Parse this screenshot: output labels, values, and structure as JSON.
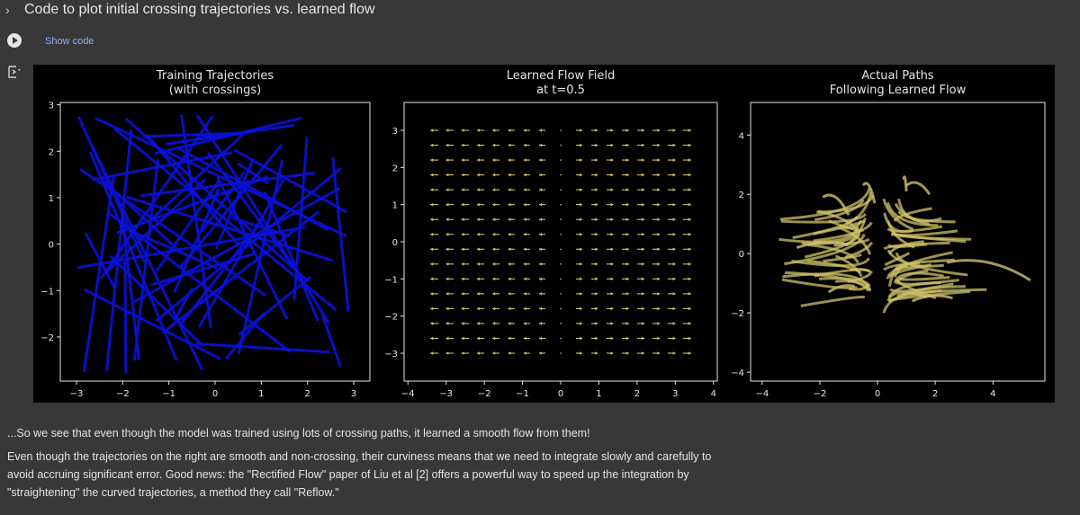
{
  "cell": {
    "title": "Code to plot initial crossing trajectories vs. learned flow",
    "show_code_label": "Show code"
  },
  "colors": {
    "training": "#0a12d8",
    "flow": "#d1c56a",
    "paths": "#cfc16a",
    "axes_bg": "#000000",
    "text": "#e3e3e3"
  },
  "charts": [
    {
      "type": "line",
      "title_line1": "Training Trajectories",
      "title_line2": "(with crossings)",
      "xlim": [
        -3.35,
        3.35
      ],
      "ylim": [
        -2.95,
        3.05
      ],
      "xticks": [
        "−3",
        "−2",
        "−1",
        "0",
        "1",
        "2",
        "3"
      ],
      "xtick_values": [
        -3,
        -2,
        -1,
        0,
        1,
        2,
        3
      ],
      "yticks": [
        "−2",
        "−1",
        "0",
        "1",
        "2",
        "3"
      ],
      "ytick_values": [
        -2,
        -1,
        0,
        1,
        2,
        3
      ]
    },
    {
      "type": "quiver",
      "title_line1": "Learned Flow Field",
      "title_line2": "at t=0.5",
      "xlim": [
        -4.1,
        4.1
      ],
      "ylim": [
        -3.75,
        3.75
      ],
      "xticks": [
        "−4",
        "−3",
        "−2",
        "−1",
        "0",
        "1",
        "2",
        "3",
        "4"
      ],
      "xtick_values": [
        -4,
        -3,
        -2,
        -1,
        0,
        1,
        2,
        3,
        4
      ],
      "yticks": [
        "−3",
        "−2",
        "−1",
        "0",
        "1",
        "2",
        "3"
      ],
      "ytick_values": [
        -3,
        -2,
        -1,
        0,
        1,
        2,
        3
      ]
    },
    {
      "type": "line",
      "title_line1": "Actual Paths",
      "title_line2": "Following Learned Flow",
      "xlim": [
        -4.4,
        5.8
      ],
      "ylim": [
        -4.3,
        5.1
      ],
      "xticks": [
        "−4",
        "−2",
        "0",
        "2",
        "4"
      ],
      "xtick_values": [
        -4,
        -2,
        0,
        2,
        4
      ],
      "yticks": [
        "−4",
        "−2",
        "0",
        "2",
        "4"
      ],
      "ytick_values": [
        -4,
        -2,
        0,
        2,
        4
      ]
    }
  ],
  "text": {
    "p1": "...So we see that even though the model was trained using lots of crossing paths, it learned a smooth flow from them!",
    "p2_l1": "Even though the trajectories on the right are smooth and non-crossing, their curviness means that we need to integrate slowly and carefully to",
    "p2_l2": "avoid accruing significant error. Good news: the \"Rectified Flow\" paper of Liu et al [2] offers a powerful way to speed up the integration by",
    "p2_l3": "\"straightening\" the curved trajectories, a method they call \"Reflow.\""
  }
}
